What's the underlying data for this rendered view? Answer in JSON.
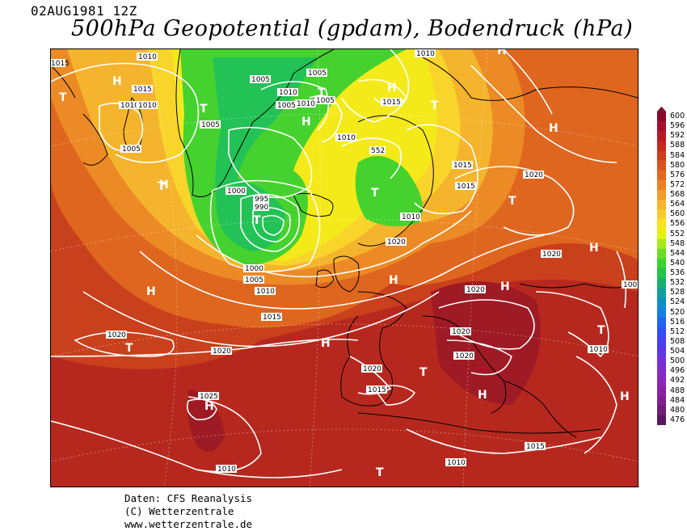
{
  "header": {
    "datetime": "02AUG1981 12Z",
    "title": "500hPa Geopotential (gpdam), Bodendruck (hPa)"
  },
  "credits": {
    "line1": "Daten: CFS Reanalysis",
    "line2": "(C) Wetterzentrale",
    "line3": "www.wetterzentrale.de"
  },
  "legend": {
    "unit": "gpdam",
    "levels": [
      "600",
      "596",
      "592",
      "588",
      "584",
      "580",
      "576",
      "572",
      "568",
      "564",
      "560",
      "556",
      "552",
      "548",
      "544",
      "540",
      "536",
      "532",
      "528",
      "524",
      "520",
      "516",
      "512",
      "508",
      "504",
      "500",
      "496",
      "492",
      "488",
      "484",
      "480",
      "476"
    ],
    "colors": [
      "#8a0a2a",
      "#a4102c",
      "#b51a22",
      "#c4281e",
      "#cf3e1e",
      "#d9551e",
      "#e26a1f",
      "#ea8224",
      "#f09c2a",
      "#f5b52e",
      "#f8cc2c",
      "#fae21c",
      "#e6f00e",
      "#a8e818",
      "#6cdc26",
      "#3ed230",
      "#26c24c",
      "#1ab072",
      "#14a09a",
      "#1090c2",
      "#1480e0",
      "#2066ee",
      "#3050f2",
      "#4840ee",
      "#5e36e4",
      "#7430d6",
      "#842cc8",
      "#8c28b6",
      "#8a22a2",
      "#80208e",
      "#701c78",
      "#5a1660"
    ]
  },
  "isobar_labels": [
    "1015",
    "1010",
    "1005",
    "1010",
    "1010",
    "1005",
    "1015",
    "1005",
    "1005",
    "1010",
    "1010",
    "1005",
    "1010",
    "1010",
    "1015",
    "1005",
    "1000",
    "995",
    "990",
    "1010",
    "552",
    "1015",
    "1015",
    "1010",
    "1020",
    "1020",
    "1000",
    "1005",
    "1010",
    "1020",
    "1020",
    "1015",
    "1020",
    "1020",
    "1020",
    "1020",
    "1010",
    "1015",
    "1025",
    "1020",
    "1010",
    "1015",
    "1010",
    "100"
  ],
  "pressure_centers": [
    "H",
    "H",
    "T",
    "T",
    "H",
    "T",
    "T",
    "H",
    "H",
    "T",
    "H",
    "T",
    "T",
    "T",
    "H",
    "H",
    "H",
    "T",
    "H",
    "T",
    "H",
    "T",
    "H",
    "T",
    "H",
    "H"
  ]
}
